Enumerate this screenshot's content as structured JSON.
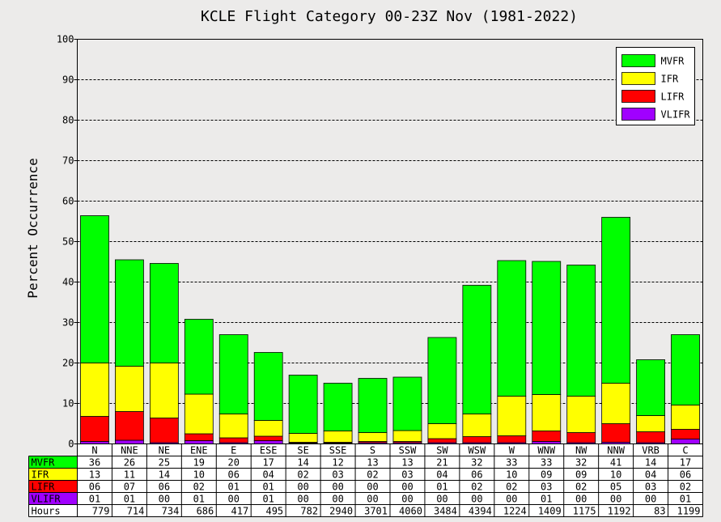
{
  "chart_data": {
    "type": "bar",
    "stacked": true,
    "title": "KCLE Flight Category 00-23Z Nov (1981-2022)",
    "ylabel": "Percent Occurrence",
    "ylim": [
      0,
      100
    ],
    "yticks": [
      0,
      10,
      20,
      30,
      40,
      50,
      60,
      70,
      80,
      90,
      100
    ],
    "grid": "horizontal dashed",
    "legend_position": "top-right",
    "categories": [
      "N",
      "NNE",
      "NE",
      "ENE",
      "E",
      "ESE",
      "SE",
      "SSE",
      "S",
      "SSW",
      "SW",
      "WSW",
      "W",
      "WNW",
      "NW",
      "NNW",
      "VRB",
      "C"
    ],
    "series": [
      {
        "name": "VLIFR",
        "color": "#a000ff",
        "values": [
          0.6,
          0.9,
          0.3,
          0.8,
          0.3,
          0.8,
          0.2,
          0.2,
          0.3,
          0.3,
          0.3,
          0.3,
          0.3,
          0.6,
          0.3,
          0.4,
          0.3,
          1.2
        ]
      },
      {
        "name": "LIFR",
        "color": "#ff0000",
        "values": [
          6.2,
          7.1,
          6.1,
          1.7,
          1.2,
          1.1,
          0.2,
          0.2,
          0.3,
          0.3,
          1.0,
          1.5,
          1.7,
          2.6,
          2.5,
          4.6,
          2.7,
          2.4
        ]
      },
      {
        "name": "IFR",
        "color": "#ffff00",
        "values": [
          13.2,
          11.2,
          13.6,
          9.8,
          5.9,
          3.9,
          2.2,
          2.8,
          2.2,
          2.7,
          3.7,
          5.6,
          9.8,
          9.0,
          9.0,
          10.0,
          4.0,
          6.0
        ]
      },
      {
        "name": "MVFR",
        "color": "#00ff00",
        "values": [
          36.4,
          26.3,
          24.6,
          18.5,
          19.6,
          16.8,
          14.4,
          11.8,
          13.4,
          13.2,
          21.3,
          31.8,
          33.5,
          32.9,
          32.4,
          41.0,
          13.8,
          17.4
        ]
      }
    ],
    "legend": [
      {
        "name": "MVFR",
        "color": "#00ff00"
      },
      {
        "name": "IFR",
        "color": "#ffff00"
      },
      {
        "name": "LIFR",
        "color": "#ff0000"
      },
      {
        "name": "VLIFR",
        "color": "#a000ff"
      }
    ],
    "table": {
      "rows": [
        {
          "label": "MVFR",
          "color": "#00ff00",
          "cells": [
            "36",
            "26",
            "25",
            "19",
            "20",
            "17",
            "14",
            "12",
            "13",
            "13",
            "21",
            "32",
            "33",
            "33",
            "32",
            "41",
            "14",
            "17"
          ]
        },
        {
          "label": "IFR",
          "color": "#ffff00",
          "cells": [
            "13",
            "11",
            "14",
            "10",
            "06",
            "04",
            "02",
            "03",
            "02",
            "03",
            "04",
            "06",
            "10",
            "09",
            "09",
            "10",
            "04",
            "06"
          ]
        },
        {
          "label": "LIFR",
          "color": "#ff0000",
          "cells": [
            "06",
            "07",
            "06",
            "02",
            "01",
            "01",
            "00",
            "00",
            "00",
            "00",
            "01",
            "02",
            "02",
            "03",
            "02",
            "05",
            "03",
            "02"
          ]
        },
        {
          "label": "VLIFR",
          "color": "#a000ff",
          "cells": [
            "01",
            "01",
            "00",
            "01",
            "00",
            "01",
            "00",
            "00",
            "00",
            "00",
            "00",
            "00",
            "00",
            "01",
            "00",
            "00",
            "00",
            "01"
          ]
        },
        {
          "label": "Hours",
          "color": "#ffffff",
          "cells": [
            "779",
            "714",
            "734",
            "686",
            "417",
            "495",
            "782",
            "2940",
            "3701",
            "4060",
            "3484",
            "4394",
            "1224",
            "1409",
            "1175",
            "1192",
            "83",
            "1199"
          ]
        }
      ]
    }
  }
}
